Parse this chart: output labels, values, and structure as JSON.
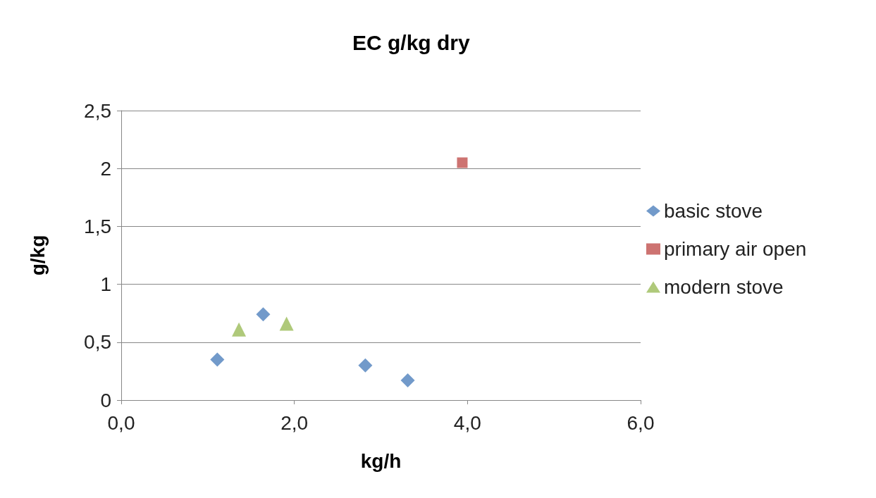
{
  "chart_data": {
    "type": "scatter",
    "title": "EC g/kg dry",
    "xlabel": "kg/h",
    "ylabel": "g/kg",
    "series": [
      {
        "name": "basic stove",
        "color": "#4f81bd",
        "marker": "diamond",
        "x": [
          1.11,
          1.64,
          2.82,
          3.31
        ],
        "values": [
          0.35,
          0.74,
          0.3,
          0.17
        ]
      },
      {
        "name": "primary air open",
        "color": "#c0504d",
        "marker": "square",
        "x": [
          3.94
        ],
        "values": [
          2.05
        ]
      },
      {
        "name": "modern stove",
        "color": "#9bbb59",
        "marker": "triangle",
        "x": [
          1.36,
          1.91
        ],
        "values": [
          0.61,
          0.66
        ]
      }
    ],
    "xlim": [
      0,
      6
    ],
    "xticks": [
      {
        "value": 0,
        "label": "0,0"
      },
      {
        "value": 2,
        "label": "2,0"
      },
      {
        "value": 4,
        "label": "4,0"
      },
      {
        "value": 6,
        "label": "6,0"
      }
    ],
    "ylim": [
      0,
      2.5
    ],
    "yticks": [
      0,
      {
        "value": 0.5,
        "label": "0,5"
      },
      1,
      {
        "value": 1.5,
        "label": "1,5"
      },
      2,
      {
        "value": 2.5,
        "label": "2,5"
      }
    ],
    "grid": "y",
    "legend": "right"
  }
}
